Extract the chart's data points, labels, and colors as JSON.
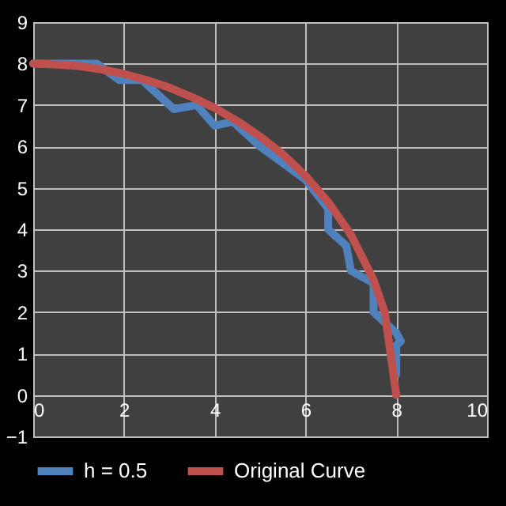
{
  "chart_data": {
    "type": "line",
    "xlim": [
      0,
      10
    ],
    "ylim": [
      -1,
      9
    ],
    "xticks": [
      0,
      2,
      4,
      6,
      8,
      10
    ],
    "yticks": [
      -1,
      0,
      1,
      2,
      3,
      4,
      5,
      6,
      7,
      8,
      9
    ],
    "grid": true,
    "legend": "bottom",
    "line_style": "solid",
    "marker": "none",
    "series": [
      {
        "name": "h = 0.5",
        "color": "#4f81bd",
        "x": [
          0,
          0.5,
          1,
          1.4,
          1.9,
          2.4,
          3.1,
          3.6,
          4.0,
          4.4,
          5.0,
          5.5,
          6.0,
          6.5,
          6.5,
          6.9,
          7.0,
          7.5,
          7.5,
          8.0,
          8.1,
          8.0,
          8.0
        ],
        "values": [
          8,
          8,
          8,
          8,
          7.6,
          7.6,
          6.9,
          7.0,
          6.5,
          6.6,
          6.0,
          5.6,
          5.2,
          4.5,
          4.0,
          3.6,
          3.0,
          2.7,
          2.0,
          1.5,
          1.3,
          1.2,
          0.5
        ]
      },
      {
        "name": "Original Curve",
        "color": "#c0504d",
        "x": [
          0,
          0.5,
          1,
          1.5,
          2,
          2.5,
          3,
          3.5,
          4,
          4.5,
          5,
          5.5,
          6,
          6.5,
          7,
          7.5,
          7.75,
          8
        ],
        "values": [
          8,
          7.98,
          7.94,
          7.86,
          7.75,
          7.6,
          7.42,
          7.19,
          6.93,
          6.61,
          6.24,
          5.81,
          5.29,
          4.66,
          3.87,
          2.78,
          1.98,
          0
        ]
      }
    ]
  }
}
